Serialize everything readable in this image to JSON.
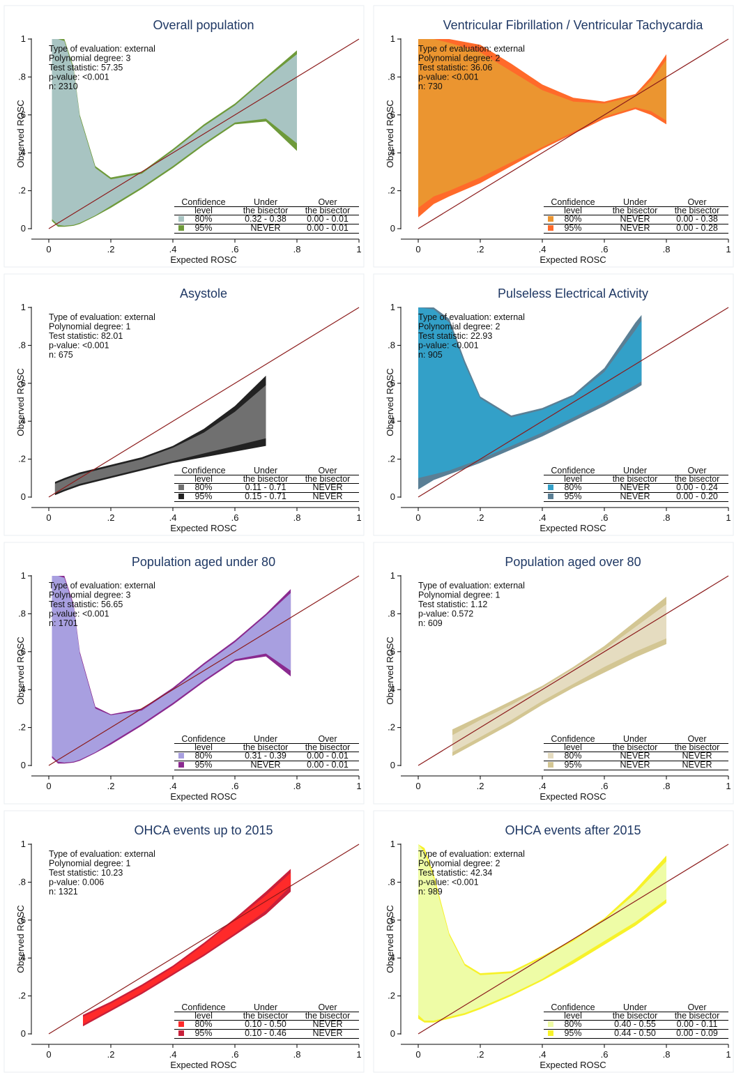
{
  "axis": {
    "xlabel": "Expected ROSC",
    "ylabel": "Observed ROSC",
    "xticks": [
      "0",
      ".2",
      ".4",
      ".6",
      ".8",
      "1"
    ],
    "yticks": [
      "0",
      ".2",
      ".4",
      ".6",
      ".8",
      "1"
    ]
  },
  "legend_headers": {
    "col1_line1": "Confidence",
    "col1_line2": "level",
    "col2_line1": "Under",
    "col2_line2": "the bisector",
    "col3_line1": "Over",
    "col3_line2": "the bisector"
  },
  "colors": {
    "bisector": "#8b1a1a",
    "axis": "#000000",
    "title": "#1f3864",
    "frame": "#e8eef0"
  },
  "chart_data": [
    {
      "type": "area",
      "title": "Overall population",
      "xlabel": "Expected ROSC",
      "ylabel": "Observed ROSC",
      "xlim": [
        0,
        1
      ],
      "ylim": [
        0,
        1
      ],
      "stats": [
        "Type of evaluation: external",
        "Polynomial degree: 3",
        "Test statistic: 57.35",
        "p-value: <0.001",
        "n: 2310"
      ],
      "color80": "#a8c4c2",
      "color95": "#6e9a3a",
      "x": [
        0.01,
        0.03,
        0.05,
        0.08,
        0.1,
        0.15,
        0.2,
        0.3,
        0.4,
        0.5,
        0.6,
        0.7,
        0.8
      ],
      "up95": [
        1.0,
        1.0,
        1.0,
        0.85,
        0.6,
        0.33,
        0.27,
        0.3,
        0.42,
        0.55,
        0.66,
        0.8,
        0.94
      ],
      "up80": [
        1.0,
        1.0,
        0.99,
        0.84,
        0.59,
        0.32,
        0.26,
        0.29,
        0.41,
        0.54,
        0.65,
        0.79,
        0.92
      ],
      "low80": [
        0.05,
        0.02,
        0.015,
        0.02,
        0.03,
        0.07,
        0.12,
        0.22,
        0.33,
        0.45,
        0.56,
        0.58,
        0.45
      ],
      "low95": [
        0.04,
        0.01,
        0.01,
        0.015,
        0.025,
        0.065,
        0.11,
        0.21,
        0.32,
        0.44,
        0.55,
        0.565,
        0.41
      ],
      "legend_rows": [
        {
          "level": "80%",
          "under": "0.32 - 0.38",
          "over": "0.00 - 0.01"
        },
        {
          "level": "95%",
          "under": "NEVER",
          "over": "0.00 - 0.01"
        }
      ]
    },
    {
      "type": "area",
      "title": "Ventricular Fibrillation / Ventricular Tachycardia",
      "xlabel": "Expected ROSC",
      "ylabel": "Observed ROSC",
      "xlim": [
        0,
        1
      ],
      "ylim": [
        0,
        1
      ],
      "stats": [
        "Type of evaluation: external",
        "Polynomial degree: 2",
        "Test statistic: 36.06",
        "p-value: <0.001",
        "n: 730"
      ],
      "color80": "#eb9530",
      "color95": "#ff6a2a",
      "x": [
        0.0,
        0.05,
        0.1,
        0.2,
        0.3,
        0.4,
        0.5,
        0.6,
        0.7,
        0.75,
        0.8
      ],
      "up95": [
        1.0,
        1.0,
        1.0,
        0.97,
        0.87,
        0.76,
        0.69,
        0.67,
        0.71,
        0.8,
        0.92
      ],
      "up80": [
        1.0,
        1.0,
        0.98,
        0.93,
        0.83,
        0.73,
        0.67,
        0.66,
        0.7,
        0.78,
        0.89
      ],
      "low80": [
        0.11,
        0.17,
        0.2,
        0.27,
        0.35,
        0.43,
        0.51,
        0.59,
        0.64,
        0.62,
        0.57
      ],
      "low95": [
        0.06,
        0.13,
        0.17,
        0.24,
        0.33,
        0.42,
        0.5,
        0.58,
        0.63,
        0.6,
        0.55
      ],
      "legend_rows": [
        {
          "level": "80%",
          "under": "NEVER",
          "over": "0.00 - 0.38"
        },
        {
          "level": "95%",
          "under": "NEVER",
          "over": "0.00 - 0.28"
        }
      ]
    },
    {
      "type": "area",
      "title": "Asystole",
      "xlabel": "Expected ROSC",
      "ylabel": "Observed ROSC",
      "xlim": [
        0,
        1
      ],
      "ylim": [
        0,
        1
      ],
      "stats": [
        "Type of evaluation: external",
        "Polynomial degree: 1",
        "Test statistic: 82.01",
        "p-value: <0.001",
        "n: 675"
      ],
      "color80": "#707070",
      "color95": "#222222",
      "x": [
        0.02,
        0.05,
        0.1,
        0.2,
        0.3,
        0.4,
        0.5,
        0.6,
        0.7
      ],
      "up95": [
        0.08,
        0.1,
        0.13,
        0.17,
        0.21,
        0.27,
        0.36,
        0.48,
        0.64
      ],
      "up80": [
        0.07,
        0.09,
        0.12,
        0.16,
        0.2,
        0.26,
        0.34,
        0.45,
        0.59
      ],
      "low80": [
        0.02,
        0.04,
        0.07,
        0.11,
        0.15,
        0.19,
        0.23,
        0.27,
        0.31
      ],
      "low95": [
        0.01,
        0.03,
        0.06,
        0.1,
        0.14,
        0.18,
        0.21,
        0.24,
        0.27
      ],
      "legend_rows": [
        {
          "level": "80%",
          "under": "0.11 - 0.71",
          "over": "NEVER"
        },
        {
          "level": "95%",
          "under": "0.15 - 0.71",
          "over": "NEVER"
        }
      ]
    },
    {
      "type": "area",
      "title": "Pulseless Electrical Activity",
      "xlabel": "Expected ROSC",
      "ylabel": "Observed ROSC",
      "xlim": [
        0,
        1
      ],
      "ylim": [
        0,
        1
      ],
      "stats": [
        "Type of evaluation: external",
        "Polynomial degree: 2",
        "Test statistic: 22.93",
        "p-value: <0.001",
        "n: 905"
      ],
      "color80": "#33a0c8",
      "color95": "#5a7f95",
      "x": [
        0.0,
        0.05,
        0.1,
        0.15,
        0.2,
        0.3,
        0.4,
        0.5,
        0.6,
        0.7,
        0.72
      ],
      "up95": [
        1.0,
        1.0,
        0.94,
        0.72,
        0.53,
        0.43,
        0.47,
        0.54,
        0.68,
        0.92,
        0.96
      ],
      "up80": [
        1.0,
        0.99,
        0.92,
        0.7,
        0.52,
        0.42,
        0.46,
        0.53,
        0.66,
        0.88,
        0.93
      ],
      "low80": [
        0.1,
        0.12,
        0.14,
        0.17,
        0.2,
        0.27,
        0.34,
        0.42,
        0.5,
        0.59,
        0.61
      ],
      "low95": [
        0.04,
        0.09,
        0.12,
        0.15,
        0.18,
        0.25,
        0.32,
        0.4,
        0.48,
        0.57,
        0.59
      ],
      "legend_rows": [
        {
          "level": "80%",
          "under": "NEVER",
          "over": "0.00 - 0.24"
        },
        {
          "level": "95%",
          "under": "NEVER",
          "over": "0.00 - 0.20"
        }
      ]
    },
    {
      "type": "area",
      "title": "Population aged under 80",
      "xlabel": "Expected ROSC",
      "ylabel": "Observed ROSC",
      "xlim": [
        0,
        1
      ],
      "ylim": [
        0,
        1
      ],
      "stats": [
        "Type of evaluation: external",
        "Polynomial degree: 3",
        "Test statistic: 56.65",
        "p-value: <0.001",
        "n: 1701"
      ],
      "color80": "#a89fe0",
      "color95": "#8a2a8f",
      "x": [
        0.01,
        0.03,
        0.05,
        0.08,
        0.1,
        0.15,
        0.2,
        0.3,
        0.4,
        0.5,
        0.6,
        0.7,
        0.78
      ],
      "up95": [
        1.0,
        1.0,
        1.0,
        0.85,
        0.6,
        0.31,
        0.27,
        0.3,
        0.41,
        0.54,
        0.66,
        0.8,
        0.93
      ],
      "up80": [
        1.0,
        1.0,
        0.99,
        0.84,
        0.59,
        0.3,
        0.265,
        0.29,
        0.4,
        0.53,
        0.65,
        0.79,
        0.91
      ],
      "low80": [
        0.05,
        0.02,
        0.015,
        0.02,
        0.03,
        0.07,
        0.12,
        0.22,
        0.33,
        0.45,
        0.56,
        0.59,
        0.5
      ],
      "low95": [
        0.04,
        0.01,
        0.01,
        0.015,
        0.025,
        0.065,
        0.11,
        0.21,
        0.32,
        0.44,
        0.55,
        0.575,
        0.47
      ],
      "legend_rows": [
        {
          "level": "80%",
          "under": "0.31 - 0.39",
          "over": "0.00 - 0.01"
        },
        {
          "level": "95%",
          "under": "NEVER",
          "over": "0.00 - 0.01"
        }
      ]
    },
    {
      "type": "area",
      "title": "Population aged over 80",
      "xlabel": "Expected ROSC",
      "ylabel": "Observed ROSC",
      "xlim": [
        0,
        1
      ],
      "ylim": [
        0,
        1
      ],
      "stats": [
        "Type of evaluation: external",
        "Polynomial degree: 1",
        "Test statistic: 1.12",
        "p-value: 0.572",
        "n: 609"
      ],
      "color80": "#e5dcc0",
      "color95": "#d3c693",
      "x": [
        0.11,
        0.2,
        0.3,
        0.4,
        0.5,
        0.6,
        0.7,
        0.8
      ],
      "up95": [
        0.19,
        0.26,
        0.34,
        0.42,
        0.52,
        0.63,
        0.76,
        0.89
      ],
      "up80": [
        0.16,
        0.24,
        0.32,
        0.41,
        0.51,
        0.61,
        0.73,
        0.85
      ],
      "low80": [
        0.07,
        0.15,
        0.24,
        0.34,
        0.43,
        0.52,
        0.6,
        0.67
      ],
      "low95": [
        0.05,
        0.13,
        0.22,
        0.32,
        0.41,
        0.49,
        0.57,
        0.64
      ],
      "legend_rows": [
        {
          "level": "80%",
          "under": "NEVER",
          "over": "NEVER"
        },
        {
          "level": "95%",
          "under": "NEVER",
          "over": "NEVER"
        }
      ]
    },
    {
      "type": "area",
      "title": "OHCA events up to 2015",
      "xlabel": "Expected ROSC",
      "ylabel": "Observed ROSC",
      "xlim": [
        0,
        1
      ],
      "ylim": [
        0,
        1
      ],
      "stats": [
        "Type of evaluation: external",
        "Polynomial degree: 1",
        "Test statistic: 10.23",
        "p-value: 0.006",
        "n: 1321"
      ],
      "color80": "#ff2a2a",
      "color95": "#c8203a",
      "x": [
        0.11,
        0.2,
        0.3,
        0.4,
        0.5,
        0.6,
        0.7,
        0.78
      ],
      "up95": [
        0.1,
        0.17,
        0.26,
        0.36,
        0.48,
        0.61,
        0.75,
        0.87
      ],
      "up80": [
        0.09,
        0.16,
        0.25,
        0.35,
        0.47,
        0.6,
        0.73,
        0.85
      ],
      "low80": [
        0.05,
        0.13,
        0.22,
        0.32,
        0.42,
        0.53,
        0.65,
        0.78
      ],
      "low95": [
        0.04,
        0.12,
        0.21,
        0.31,
        0.41,
        0.52,
        0.63,
        0.75
      ],
      "legend_rows": [
        {
          "level": "80%",
          "under": "0.10 - 0.50",
          "over": "NEVER"
        },
        {
          "level": "95%",
          "under": "0.10 - 0.46",
          "over": "NEVER"
        }
      ]
    },
    {
      "type": "area",
      "title": "OHCA events after 2015",
      "xlabel": "Expected ROSC",
      "ylabel": "Observed ROSC",
      "xlim": [
        0,
        1
      ],
      "ylim": [
        0,
        1
      ],
      "stats": [
        "Type of evaluation: external",
        "Polynomial degree: 2",
        "Test statistic: 42.34",
        "p-value: <0.001",
        "n: 989"
      ],
      "color80": "#eefca6",
      "color95": "#f7f22a",
      "x": [
        0.0,
        0.02,
        0.05,
        0.1,
        0.15,
        0.2,
        0.3,
        0.4,
        0.5,
        0.6,
        0.7,
        0.8
      ],
      "up95": [
        1.0,
        0.98,
        0.84,
        0.53,
        0.37,
        0.32,
        0.33,
        0.41,
        0.5,
        0.61,
        0.76,
        0.94
      ],
      "up80": [
        1.0,
        0.96,
        0.82,
        0.52,
        0.36,
        0.31,
        0.32,
        0.4,
        0.49,
        0.6,
        0.74,
        0.91
      ],
      "low80": [
        0.1,
        0.07,
        0.07,
        0.09,
        0.11,
        0.14,
        0.21,
        0.29,
        0.39,
        0.49,
        0.59,
        0.71
      ],
      "low95": [
        0.08,
        0.06,
        0.06,
        0.08,
        0.1,
        0.13,
        0.2,
        0.28,
        0.37,
        0.47,
        0.57,
        0.69
      ],
      "legend_rows": [
        {
          "level": "80%",
          "under": "0.40 - 0.55",
          "over": "0.00 - 0.11"
        },
        {
          "level": "95%",
          "under": "0.44 - 0.50",
          "over": "0.00 - 0.09"
        }
      ]
    }
  ]
}
